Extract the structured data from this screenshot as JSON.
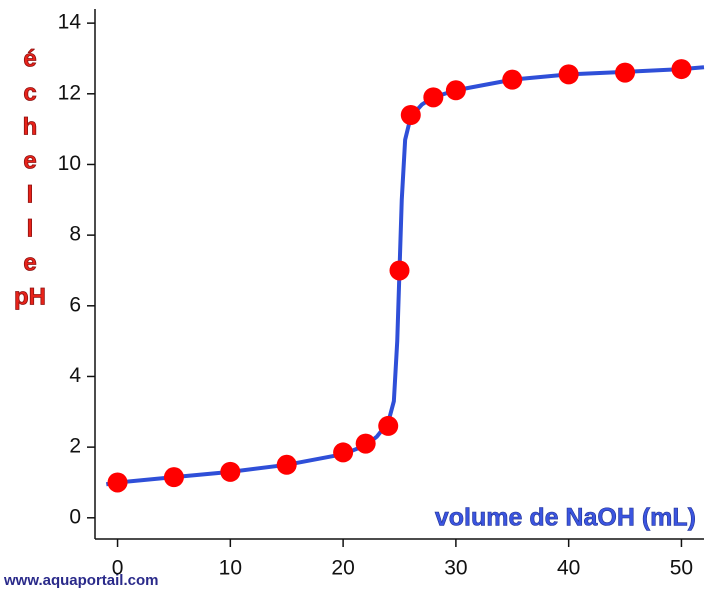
{
  "chart_data": {
    "type": "scatter",
    "x_label": "volume de NaOH (mL)",
    "y_label": [
      "é",
      "c",
      "h",
      "e",
      "l",
      "l",
      "e",
      "pH"
    ],
    "watermark": "www.aquaportail.com",
    "xlim": [
      -2,
      52
    ],
    "ylim": [
      -0.6,
      14.4
    ],
    "xticks": [
      0,
      10,
      20,
      30,
      40,
      50
    ],
    "yticks": [
      0,
      2,
      4,
      6,
      8,
      10,
      12,
      14
    ],
    "grid": false,
    "curve": {
      "color": "#2f4fd8",
      "x": [
        -1,
        0,
        5,
        10,
        15,
        20,
        22,
        23,
        24,
        24.5,
        24.8,
        25,
        25.2,
        25.5,
        26,
        27,
        28,
        30,
        35,
        40,
        45,
        50,
        52
      ],
      "y": [
        0.95,
        1.0,
        1.15,
        1.3,
        1.5,
        1.8,
        2.05,
        2.3,
        2.7,
        3.3,
        5,
        7,
        9,
        10.7,
        11.35,
        11.7,
        11.9,
        12.1,
        12.4,
        12.55,
        12.62,
        12.7,
        12.75
      ]
    },
    "points": {
      "color": "#ff0000",
      "x": [
        0,
        5,
        10,
        15,
        20,
        22,
        24,
        25,
        26,
        28,
        30,
        35,
        40,
        45,
        50
      ],
      "y": [
        1.0,
        1.15,
        1.3,
        1.5,
        1.85,
        2.1,
        2.6,
        7.0,
        11.4,
        11.9,
        12.1,
        12.4,
        12.55,
        12.6,
        12.7
      ]
    }
  }
}
